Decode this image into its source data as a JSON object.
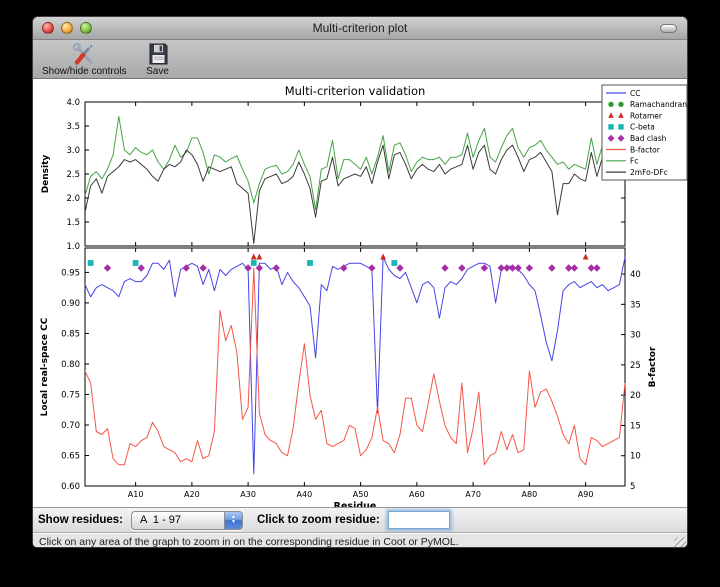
{
  "window": {
    "title": "Multi-criterion plot"
  },
  "toolbar": {
    "buttons": [
      {
        "label": "Show/hide controls"
      },
      {
        "label": "Save"
      }
    ]
  },
  "controls": {
    "show_residues_label": "Show residues:",
    "residue_range_value": "A  1 - 97",
    "zoom_residue_label": "Click to zoom residue:",
    "zoom_residue_input_value": ""
  },
  "status_bar": {
    "text": "Click on any area of the graph to zoom in on the corresponding residue in Coot or PyMOL."
  },
  "chart_data": {
    "type": "line",
    "title": "Multi-criterion validation",
    "xlabel": "Residue",
    "x_range": [
      1,
      97
    ],
    "x_tick_positions": [
      10,
      20,
      30,
      40,
      50,
      60,
      70,
      80,
      90
    ],
    "x_tick_labels": [
      "A10",
      "A20",
      "A30",
      "A40",
      "A50",
      "A60",
      "A70",
      "A80",
      "A90"
    ],
    "grid": false,
    "legend_position": "upper right",
    "legend_entries": [
      "CC",
      "Ramachandran",
      "Rotamer",
      "C-beta",
      "Bad clash",
      "B-factor",
      "Fc",
      "2mFo-DFc"
    ],
    "panels": [
      {
        "ylabel": "Density",
        "ylim": [
          1.0,
          4.0
        ],
        "ytick_values": [
          1.0,
          1.5,
          2.0,
          2.5,
          3.0,
          3.5,
          4.0
        ],
        "ytick_labels": [
          "1.0",
          "1.5",
          "2.0",
          "2.5",
          "3.0",
          "3.5",
          "4.0"
        ],
        "series": [
          {
            "name": "Fc",
            "color": "#46a346",
            "values": [
              2.05,
              2.45,
              2.55,
              2.4,
              2.6,
              2.9,
              3.7,
              3.0,
              2.9,
              3.05,
              2.95,
              2.9,
              3.0,
              2.75,
              2.6,
              2.8,
              3.1,
              2.85,
              2.95,
              3.25,
              3.25,
              2.95,
              2.5,
              2.9,
              2.85,
              2.75,
              2.82,
              2.88,
              2.6,
              2.35,
              1.9,
              2.3,
              2.6,
              2.65,
              2.68,
              2.5,
              2.55,
              2.7,
              3.0,
              2.7,
              2.45,
              1.75,
              2.6,
              2.65,
              3.2,
              2.4,
              2.8,
              2.8,
              2.7,
              2.6,
              2.85,
              2.5,
              2.85,
              3.3,
              2.55,
              3.1,
              3.15,
              2.9,
              2.55,
              2.75,
              2.85,
              2.8,
              2.8,
              2.85,
              2.7,
              2.85,
              2.85,
              2.9,
              3.35,
              2.85,
              3.2,
              3.45,
              2.85,
              2.75,
              3.05,
              3.3,
              3.45,
              3.05,
              2.85,
              3.05,
              3.1,
              3.2,
              3.0,
              2.85,
              2.7,
              2.75,
              2.6,
              2.7,
              2.65,
              2.6,
              3.25,
              2.7,
              3.1,
              3.05,
              2.95,
              3.1,
              3.55
            ]
          },
          {
            "name": "2mFo-DFc",
            "color": "#3a3a3a",
            "values": [
              1.7,
              2.25,
              2.4,
              2.1,
              2.45,
              2.55,
              2.65,
              2.8,
              2.75,
              2.8,
              2.7,
              2.6,
              2.45,
              2.35,
              2.6,
              2.7,
              2.65,
              2.75,
              3.0,
              2.9,
              2.7,
              2.35,
              2.65,
              2.6,
              2.55,
              2.6,
              2.65,
              2.3,
              2.2,
              2.1,
              1.05,
              2.15,
              2.4,
              2.45,
              2.5,
              2.3,
              2.35,
              2.45,
              2.75,
              2.5,
              2.2,
              1.6,
              2.35,
              2.4,
              2.85,
              2.25,
              2.4,
              2.45,
              2.5,
              2.45,
              2.65,
              2.3,
              2.75,
              3.1,
              2.4,
              2.9,
              2.95,
              2.7,
              2.4,
              2.6,
              2.7,
              2.6,
              2.55,
              2.7,
              2.5,
              2.6,
              2.65,
              2.7,
              3.1,
              2.6,
              2.95,
              3.1,
              2.6,
              2.5,
              2.8,
              3.0,
              3.1,
              2.85,
              2.55,
              2.8,
              2.85,
              2.95,
              2.75,
              2.55,
              1.65,
              2.3,
              2.3,
              2.5,
              2.4,
              2.35,
              2.95,
              2.45,
              2.85,
              2.8,
              2.7,
              3.1,
              3.15
            ]
          }
        ]
      },
      {
        "ylabel_left": "Local real-space CC",
        "ylim_left": [
          0.6,
          0.99
        ],
        "ytick_values_left": [
          0.6,
          0.65,
          0.7,
          0.75,
          0.8,
          0.85,
          0.9,
          0.95
        ],
        "ytick_labels_left": [
          "0.60",
          "0.65",
          "0.70",
          "0.75",
          "0.80",
          "0.85",
          "0.90",
          "0.95"
        ],
        "ylabel_right": "B-factor",
        "ylim_right": [
          5,
          44.3
        ],
        "ytick_values_right": [
          5,
          10,
          15,
          20,
          25,
          30,
          35,
          40
        ],
        "ytick_labels_right": [
          "5",
          "10",
          "15",
          "20",
          "25",
          "30",
          "35",
          "40"
        ],
        "series": [
          {
            "name": "CC",
            "axis": "left",
            "color": "#4545e6",
            "values": [
              0.93,
              0.91,
              0.925,
              0.93,
              0.925,
              0.92,
              0.91,
              0.935,
              0.94,
              0.935,
              0.935,
              0.945,
              0.965,
              0.965,
              0.955,
              0.97,
              0.91,
              0.955,
              0.96,
              0.965,
              0.96,
              0.93,
              0.955,
              0.92,
              0.955,
              0.945,
              0.955,
              0.96,
              0.965,
              0.955,
              0.62,
              0.965,
              0.965,
              0.955,
              0.96,
              0.93,
              0.95,
              0.935,
              0.925,
              0.91,
              0.895,
              0.81,
              0.93,
              0.92,
              0.96,
              0.955,
              0.96,
              0.965,
              0.965,
              0.965,
              0.96,
              0.955,
              0.72,
              0.975,
              0.955,
              0.945,
              0.94,
              0.95,
              0.925,
              0.9,
              0.93,
              0.935,
              0.925,
              0.875,
              0.925,
              0.935,
              0.93,
              0.94,
              0.955,
              0.96,
              0.965,
              0.965,
              0.96,
              0.9,
              0.955,
              0.96,
              0.96,
              0.955,
              0.945,
              0.93,
              0.92,
              0.88,
              0.835,
              0.805,
              0.855,
              0.92,
              0.93,
              0.935,
              0.925,
              0.93,
              0.935,
              0.925,
              0.93,
              0.92,
              0.925,
              0.93,
              0.975
            ]
          },
          {
            "name": "B-factor",
            "axis": "right",
            "color": "#f4564a",
            "values": [
              24.0,
              22.0,
              14.0,
              13.5,
              14.5,
              9.5,
              8.5,
              8.5,
              12.0,
              11.5,
              12.5,
              13.0,
              15.5,
              14.0,
              11.5,
              11.0,
              10.5,
              9.0,
              9.5,
              9.0,
              12.5,
              9.5,
              10.0,
              14.0,
              34.0,
              29.0,
              31.5,
              27.0,
              16.0,
              18.0,
              41.0,
              17.0,
              13.5,
              12.5,
              12.0,
              10.5,
              10.0,
              14.5,
              22.0,
              28.5,
              20.0,
              16.0,
              17.5,
              12.0,
              11.5,
              12.0,
              12.5,
              15.0,
              14.5,
              10.0,
              11.0,
              13.0,
              18.0,
              12.5,
              12.0,
              10.5,
              13.5,
              19.5,
              19.5,
              15.0,
              14.0,
              18.5,
              23.5,
              19.0,
              15.0,
              13.0,
              12.0,
              22.0,
              10.5,
              14.5,
              20.5,
              8.5,
              10.0,
              10.5,
              14.0,
              11.0,
              13.5,
              10.5,
              11.0,
              24.0,
              18.0,
              20.5,
              21.0,
              19.0,
              16.5,
              13.5,
              12.0,
              15.0,
              9.5,
              8.5,
              13.0,
              12.5,
              11.5,
              12.0,
              12.5,
              13.0,
              22.0
            ]
          }
        ],
        "markers": [
          {
            "name": "Ramachandran",
            "shape": "circle",
            "color": "#2f9e2f",
            "residues": []
          },
          {
            "name": "Rotamer",
            "shape": "triangle",
            "color": "#cc2a1d",
            "residues": [
              31,
              32,
              54,
              90
            ]
          },
          {
            "name": "C-beta",
            "shape": "square",
            "color": "#1ab5b5",
            "residues": [
              2,
              10,
              31,
              41,
              56
            ]
          },
          {
            "name": "Bad clash",
            "shape": "diamond",
            "color": "#a62ea6",
            "residues": [
              5,
              11,
              19,
              22,
              30,
              32,
              35,
              47,
              52,
              57,
              65,
              68,
              72,
              75,
              76,
              77,
              78,
              80,
              84,
              87,
              88,
              91,
              92
            ]
          }
        ]
      }
    ]
  }
}
